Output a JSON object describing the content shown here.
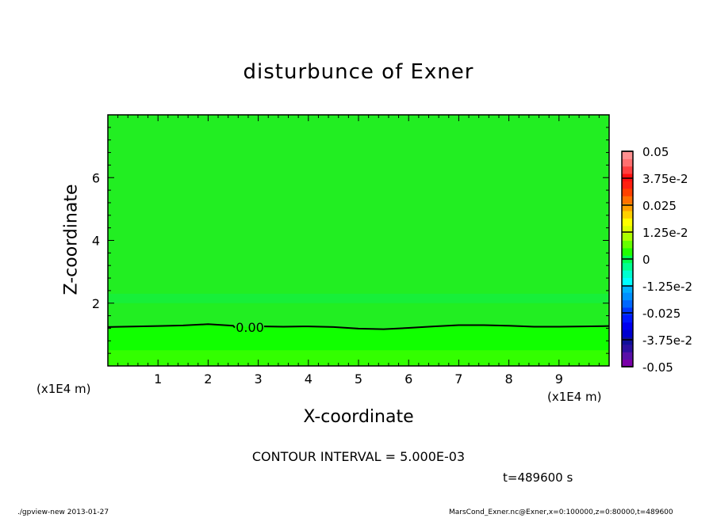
{
  "chart_data": {
    "type": "contour",
    "title": "disturbunce of Exner",
    "xlabel": "X-coordinate",
    "ylabel": "Z-coordinate",
    "x_unit_label": "(x1E4 m)",
    "y_unit_label": "(x1E4 m)",
    "xlim": [
      0,
      10
    ],
    "ylim": [
      0,
      8
    ],
    "x_ticks": [
      "1",
      "2",
      "3",
      "4",
      "5",
      "6",
      "7",
      "8",
      "9"
    ],
    "y_ticks": [
      "2",
      "4",
      "6"
    ],
    "contour_interval_text": "CONTOUR INTERVAL = 5.000E-03",
    "contour_label": "0.00",
    "zero_contour": {
      "x": [
        0,
        1,
        1.5,
        2,
        2.5,
        3,
        3.5,
        4,
        4.5,
        5,
        5.5,
        6,
        6.5,
        7,
        7.5,
        8,
        8.5,
        9,
        9.5,
        10
      ],
      "z": [
        1.24,
        1.27,
        1.29,
        1.33,
        1.28,
        1.22,
        1.25,
        1.26,
        1.24,
        1.19,
        1.17,
        1.21,
        1.26,
        1.3,
        1.3,
        1.28,
        1.25,
        1.25,
        1.26,
        1.27
      ]
    },
    "filled_bands": [
      {
        "z_range": [
          0,
          0.5
        ],
        "level": 0.005
      },
      {
        "z_range": [
          0.5,
          1.25
        ],
        "level": 0.0
      },
      {
        "z_range": [
          1.25,
          8
        ],
        "level": -0.005
      }
    ],
    "colorbar": {
      "min": -0.05,
      "max": 0.05,
      "labels": [
        "0.05",
        "3.75e-2",
        "0.025",
        "1.25e-2",
        "0",
        "-1.25e-2",
        "-0.025",
        "-3.75e-2",
        "-0.05"
      ],
      "colors_bottom_to_top": [
        "#7a00a8",
        "#5810a8",
        "#2c10a0",
        "#10109a",
        "#0000d0",
        "#0000f0",
        "#0018ff",
        "#0038ff",
        "#0068ff",
        "#0090ff",
        "#00b0ff",
        "#00ffff",
        "#00ffd0",
        "#00ff90",
        "#00ff50",
        "#22ff00",
        "#66ff00",
        "#aaff00",
        "#ddff00",
        "#ffff00",
        "#ffd000",
        "#ffa000",
        "#ff7000",
        "#ff4000",
        "#ff2010",
        "#ff1010",
        "#ff4040",
        "#ff7070",
        "#ff9090"
      ]
    },
    "time_label": "t=489600 s"
  },
  "footer": {
    "left": "./gpview-new  2013-01-27",
    "right": "MarsCond_Exner.nc@Exner,x=0:100000,z=0:80000,t=489600"
  }
}
